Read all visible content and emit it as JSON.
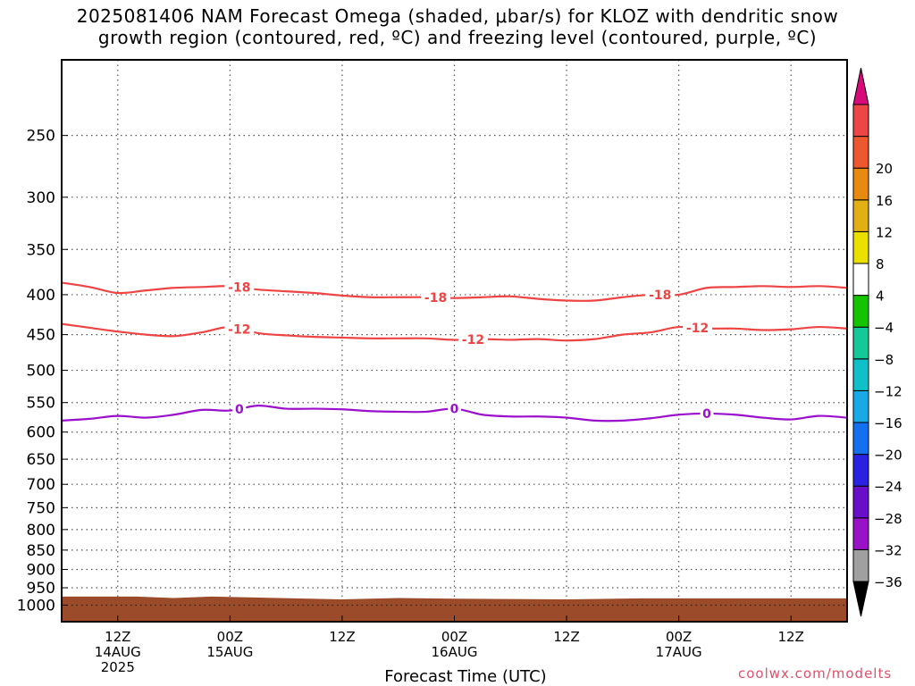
{
  "title_lines": [
    "2025081406 NAM Forecast Omega (shaded, μbar/s) for KLOZ with dendritic snow",
    "growth region (contoured, red, ºC) and freezing level (contoured, purple, ºC)"
  ],
  "credit": "coolwx.com/modelts",
  "chart_data": {
    "type": "line",
    "title": "2025081406 NAM Forecast Omega (shaded, μbar/s) for KLOZ with dendritic snow growth region (contoured, red, ºC) and freezing level (contoured, purple, ºC)",
    "xlabel": "Forecast Time (UTC)",
    "ylabel": "",
    "x_unit": "forecast hour",
    "xlim": [
      6,
      90
    ],
    "y_scale": "log (pressure, reversed)",
    "ylim": [
      1050,
      200
    ],
    "grid": true,
    "x_ticks": [
      {
        "x": 12,
        "lines": [
          "12Z",
          "14AUG",
          "2025"
        ]
      },
      {
        "x": 24,
        "lines": [
          "00Z",
          "15AUG"
        ]
      },
      {
        "x": 36,
        "lines": [
          "12Z"
        ]
      },
      {
        "x": 48,
        "lines": [
          "00Z",
          "16AUG"
        ]
      },
      {
        "x": 60,
        "lines": [
          "12Z"
        ]
      },
      {
        "x": 72,
        "lines": [
          "00Z",
          "17AUG"
        ]
      },
      {
        "x": 84,
        "lines": [
          "12Z"
        ]
      }
    ],
    "y_ticks": [
      250,
      300,
      350,
      400,
      450,
      500,
      550,
      600,
      650,
      700,
      750,
      800,
      850,
      900,
      950,
      1000
    ],
    "series": [
      {
        "name": "-18",
        "color": "#ee4444",
        "x": [
          6,
          9,
          12,
          15,
          18,
          21,
          24,
          27,
          30,
          33,
          36,
          39,
          42,
          45,
          48,
          51,
          54,
          57,
          60,
          63,
          66,
          69,
          72,
          75,
          78,
          81,
          84,
          87,
          90
        ],
        "y": [
          386,
          391,
          398,
          395,
          392,
          391,
          390,
          394,
          396,
          398,
          401,
          403,
          403,
          403,
          404,
          403,
          402,
          405,
          407,
          407,
          403,
          400,
          400,
          392,
          391,
          390,
          391,
          390,
          392
        ],
        "labels": [
          {
            "x": 25,
            "text": "-18"
          },
          {
            "x": 46,
            "text": "-18"
          },
          {
            "x": 70,
            "text": "-18"
          }
        ]
      },
      {
        "name": "-12",
        "color": "#ee4444",
        "x": [
          6,
          9,
          12,
          15,
          18,
          21,
          24,
          27,
          30,
          33,
          36,
          39,
          42,
          45,
          48,
          51,
          54,
          57,
          60,
          63,
          66,
          69,
          72,
          75,
          78,
          81,
          84,
          87,
          90
        ],
        "y": [
          436,
          441,
          446,
          450,
          452,
          447,
          440,
          448,
          451,
          453,
          454,
          455,
          455,
          455,
          457,
          456,
          457,
          456,
          458,
          456,
          450,
          447,
          440,
          442,
          442,
          444,
          443,
          440,
          442
        ],
        "labels": [
          {
            "x": 25,
            "text": "-12"
          },
          {
            "x": 50,
            "text": "-12"
          },
          {
            "x": 74,
            "text": "-12"
          }
        ]
      },
      {
        "name": "0",
        "color": "#9b10cc",
        "x": [
          6,
          9,
          12,
          15,
          18,
          21,
          24,
          27,
          30,
          33,
          36,
          39,
          42,
          45,
          48,
          51,
          54,
          57,
          60,
          63,
          66,
          69,
          72,
          75,
          78,
          81,
          84,
          87,
          90
        ],
        "y": [
          580,
          577,
          572,
          575,
          570,
          562,
          563,
          555,
          560,
          560,
          561,
          564,
          565,
          565,
          560,
          570,
          573,
          573,
          575,
          580,
          580,
          576,
          570,
          568,
          570,
          575,
          578,
          572,
          575
        ],
        "labels": [
          {
            "x": 25,
            "text": "0"
          },
          {
            "x": 48,
            "text": "0"
          },
          {
            "x": 75,
            "text": "0"
          }
        ]
      }
    ],
    "terrain": {
      "color": "#9b4b2a",
      "x": [
        6,
        14,
        18,
        22,
        36,
        42,
        48,
        60,
        68,
        90
      ],
      "y": [
        975,
        975,
        979,
        975,
        983,
        979,
        981,
        983,
        980,
        980
      ]
    },
    "colorbar": {
      "levels": [
        -36,
        -32,
        -28,
        -24,
        -20,
        -16,
        -12,
        -8,
        -4,
        4,
        8,
        12,
        16,
        20
      ],
      "colors": [
        "#a0a0a0",
        "#9912c8",
        "#6a0fc9",
        "#2a22e0",
        "#1570f0",
        "#18a9e6",
        "#10c0c8",
        "#14c897",
        "#14c400",
        "#ffffff",
        "#e9e000",
        "#e2b015",
        "#e88a10",
        "#ee5830",
        "#ec4646"
      ],
      "under_color": "#000000",
      "over_color": "#d60a78"
    }
  }
}
